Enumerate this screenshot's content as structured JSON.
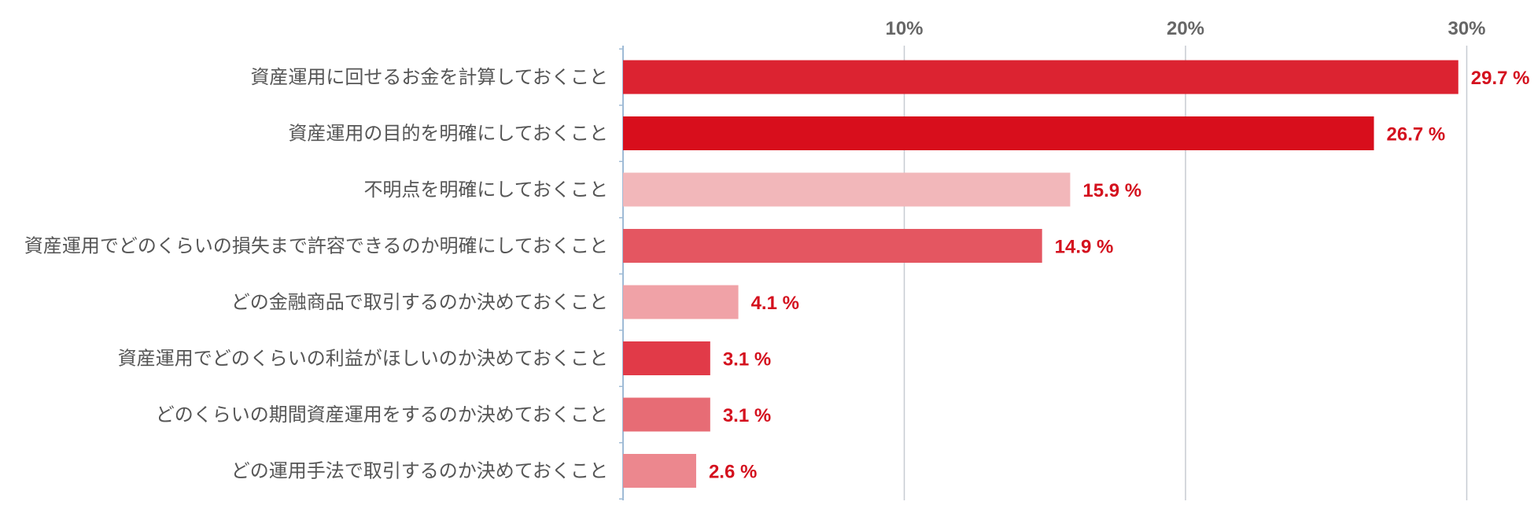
{
  "chart_data": {
    "type": "bar",
    "orientation": "horizontal",
    "title": "",
    "xlabel": "",
    "ylabel": "",
    "xlim": [
      0,
      30
    ],
    "ticks": [
      {
        "value": 10,
        "label": "10%"
      },
      {
        "value": 20,
        "label": "20%"
      },
      {
        "value": 30,
        "label": "30%"
      }
    ],
    "grid": true,
    "legend": "none",
    "categories": [
      "資産運用に回せるお金を計算しておくこと",
      "資産運用の目的を明確にしておくこと",
      "不明点を明確にしておくこと",
      "資産運用でどのくらいの損失まで許容できるのか明確にしておくこと",
      "どの金融商品で取引するのか決めておくこと",
      "資産運用でどのくらいの利益がほしいのか決めておくこと",
      "どのくらいの期間資産運用をするのか決めておくこと",
      "どの運用手法で取引するのか決めておくこと"
    ],
    "values": [
      29.7,
      26.7,
      15.9,
      14.9,
      4.1,
      3.1,
      3.1,
      2.6
    ],
    "value_labels": [
      "29.7 %",
      "26.7 %",
      "15.9 %",
      "14.9 %",
      "4.1 %",
      "3.1 %",
      "3.1 %",
      "2.6 %"
    ],
    "bar_colors": [
      "#dc2331",
      "#d80e1c",
      "#f2b7ba",
      "#e45661",
      "#f0a2a7",
      "#e13a48",
      "#e76c75",
      "#ec878e"
    ],
    "value_label_color": "#d4111e",
    "axis_color": "#9fbbd6",
    "grid_color": "#c7ccd2"
  }
}
